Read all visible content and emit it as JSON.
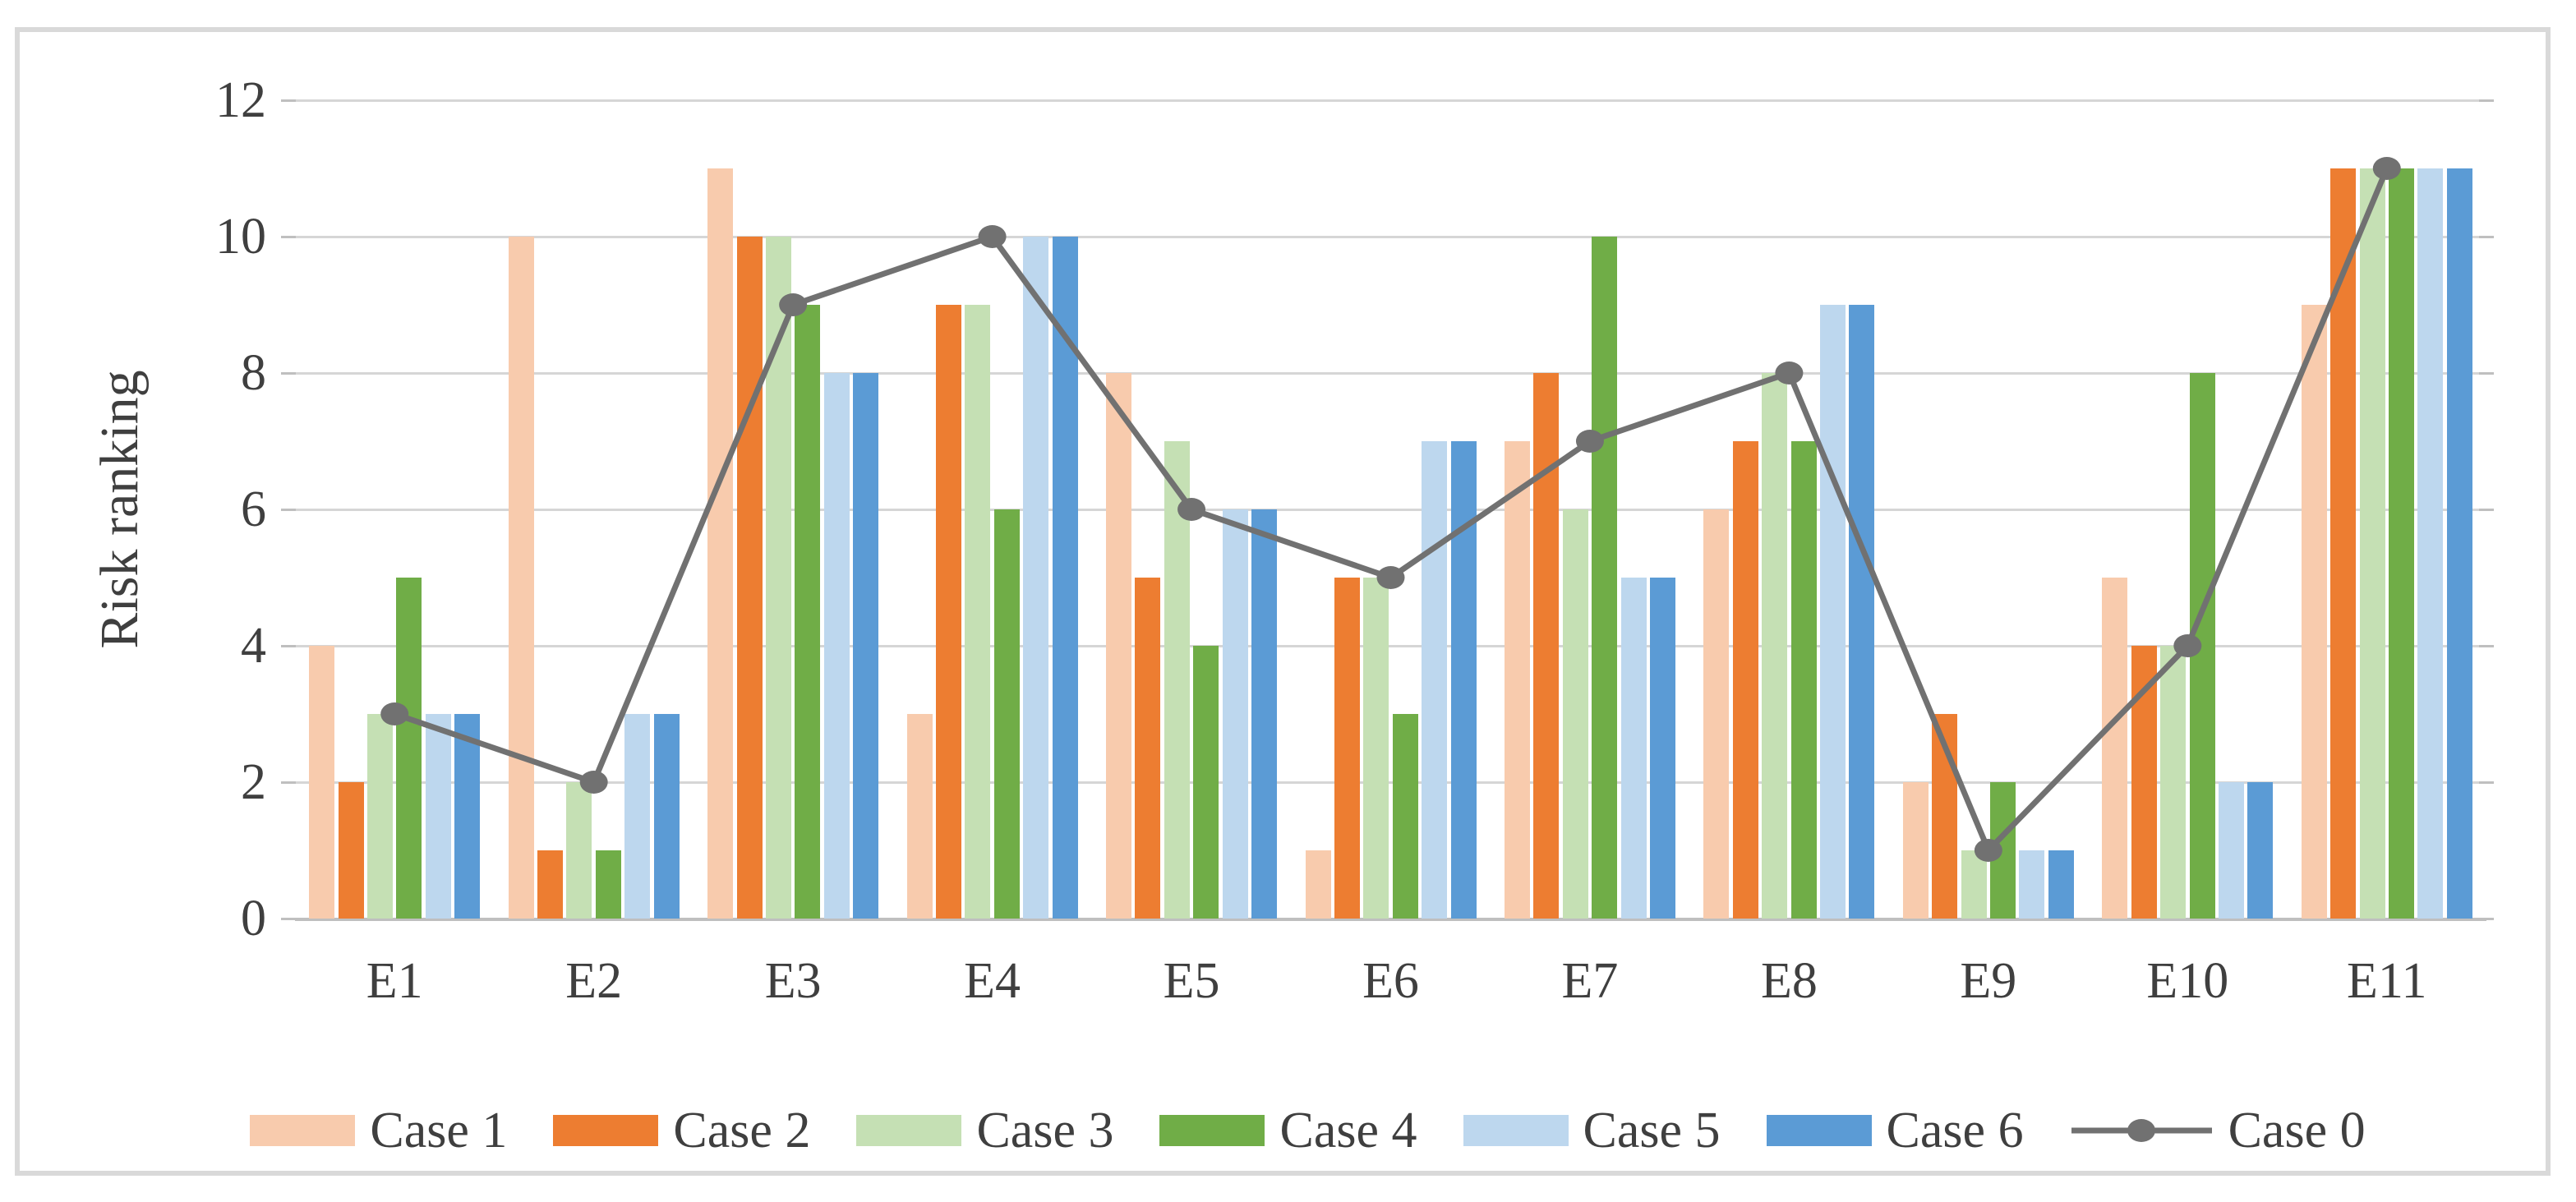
{
  "chart_data": {
    "type": "bar",
    "title": "",
    "categories": [
      "E1",
      "E2",
      "E3",
      "E4",
      "E5",
      "E6",
      "E7",
      "E8",
      "E9",
      "E10",
      "E11"
    ],
    "series": [
      {
        "name": "Case 1",
        "kind": "bar",
        "color": "#F8CBAD",
        "values": [
          4,
          10,
          11,
          3,
          8,
          1,
          7,
          6,
          2,
          5,
          9
        ]
      },
      {
        "name": "Case 2",
        "kind": "bar",
        "color": "#ED7D31",
        "values": [
          2,
          1,
          10,
          9,
          5,
          5,
          8,
          7,
          3,
          4,
          11
        ]
      },
      {
        "name": "Case 3",
        "kind": "bar",
        "color": "#C5E0B4",
        "values": [
          3,
          2,
          10,
          9,
          7,
          5,
          6,
          8,
          1,
          4,
          11
        ]
      },
      {
        "name": "Case 4",
        "kind": "bar",
        "color": "#70AD47",
        "values": [
          5,
          1,
          9,
          6,
          4,
          3,
          10,
          7,
          2,
          8,
          11
        ]
      },
      {
        "name": "Case 5",
        "kind": "bar",
        "color": "#BDD7EE",
        "values": [
          3,
          3,
          8,
          10,
          6,
          7,
          5,
          9,
          1,
          2,
          11
        ]
      },
      {
        "name": "Case 6",
        "kind": "bar",
        "color": "#5B9BD5",
        "values": [
          3,
          3,
          8,
          10,
          6,
          7,
          5,
          9,
          1,
          2,
          11
        ]
      },
      {
        "name": "Case 0",
        "kind": "line",
        "color": "#717171",
        "values": [
          3,
          2,
          9,
          10,
          6,
          5,
          7,
          8,
          1,
          4,
          11
        ]
      }
    ],
    "xlabel": "",
    "ylabel": "Risk ranking",
    "ylim": [
      0,
      12
    ],
    "yticks": [
      0,
      2,
      4,
      6,
      8,
      10,
      12
    ],
    "grid": true,
    "legend_position": "bottom"
  }
}
